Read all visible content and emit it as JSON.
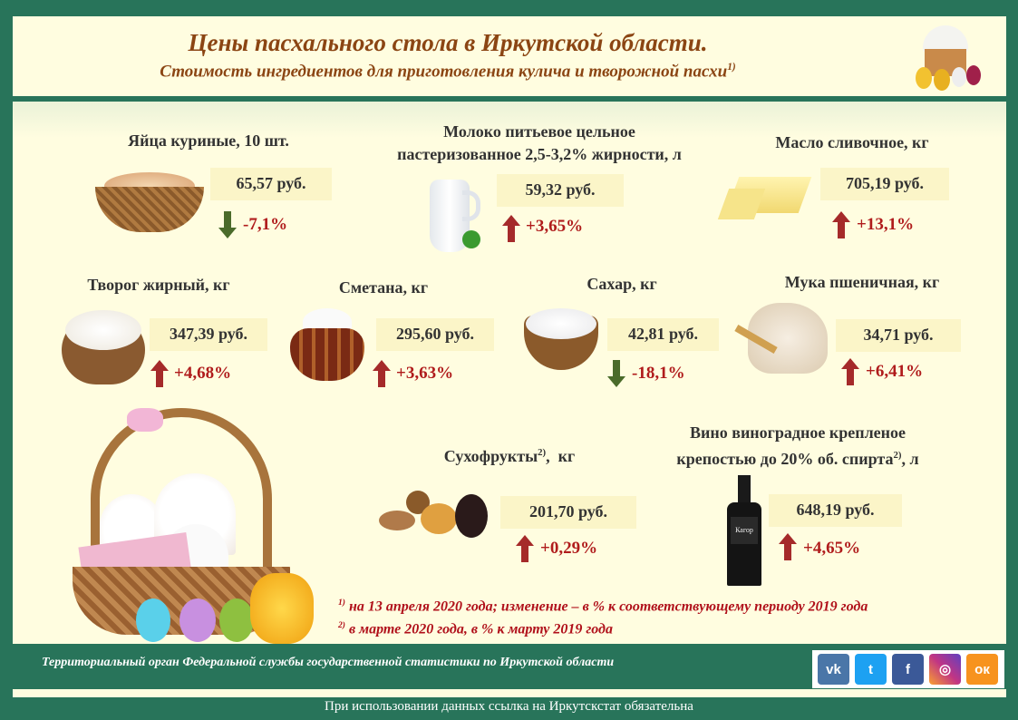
{
  "header": {
    "title": "Цены пасхального стола в Иркутской области.",
    "subtitle": "Стоимость ингредиентов для приготовления кулича и творожной пасхи",
    "subtitle_note": "1)"
  },
  "items": [
    {
      "name": "Яйца куриные, 10 шт.",
      "price": "65,57 руб.",
      "change": "-7,1%",
      "direction": "down"
    },
    {
      "name_line1": "Молоко питьевое цельное",
      "name_line2": "пастеризованное 2,5-3,2% жирности, л",
      "price": "59,32 руб.",
      "change": "+3,65%",
      "direction": "up"
    },
    {
      "name": "Масло сливочное, кг",
      "price": "705,19 руб.",
      "change": "+13,1%",
      "direction": "up"
    },
    {
      "name": "Творог жирный, кг",
      "price": "347,39 руб.",
      "change": "+4,68%",
      "direction": "up"
    },
    {
      "name": "Сметана, кг",
      "price": "295,60 руб.",
      "change": "+3,63%",
      "direction": "up"
    },
    {
      "name": "Сахар, кг",
      "price": "42,81 руб.",
      "change": "-18,1%",
      "direction": "down"
    },
    {
      "name": "Мука пшеничная, кг",
      "price": "34,71 руб.",
      "change": "+6,41%",
      "direction": "up"
    },
    {
      "name": "Сухофрукты",
      "name_note": "2)",
      "name_unit": ",  кг",
      "price": "201,70 руб.",
      "change": "+0,29%",
      "direction": "up"
    },
    {
      "name_line1": "Вино виноградное крепленое",
      "name_line2": "крепостью до 20% об. спирта",
      "name_note": "2)",
      "name_unit": ", л",
      "price": "648,19 руб.",
      "change": "+4,65%",
      "direction": "up",
      "label_text": "Кагор"
    }
  ],
  "footnotes": [
    {
      "mark": "1)",
      "text": " на 13 апреля 2020 года; изменение – в % к соответствующему периоду 2019 года"
    },
    {
      "mark": "2)",
      "text": " в марте 2020 года, в % к марту 2019 года"
    }
  ],
  "footer": {
    "org": "Территориальный орган Федеральной службы государственной статистики по Иркутской области",
    "notice": "При использовании данных ссылка на Иркутскстат обязательна"
  },
  "social": [
    {
      "icon": "vk-icon",
      "label": "vk",
      "color": "#4a76a8"
    },
    {
      "icon": "twitter-icon",
      "label": "t",
      "color": "#1da1f2"
    },
    {
      "icon": "facebook-icon",
      "label": "f",
      "color": "#3b5998"
    },
    {
      "icon": "instagram-icon",
      "label": "◎",
      "color": "#c13584"
    },
    {
      "icon": "odnoklassniki-icon",
      "label": "ок",
      "color": "#f7931e"
    }
  ],
  "colors": {
    "up": "#a52a2a",
    "down": "#4a6b2a",
    "background": "#28745a",
    "panel": "#fffde0"
  }
}
